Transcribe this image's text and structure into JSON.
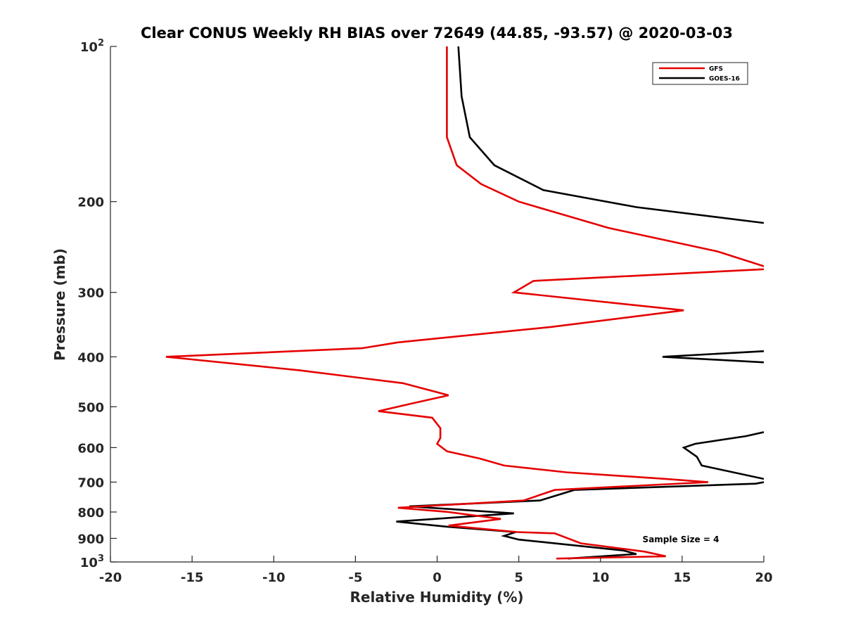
{
  "chart_data": {
    "type": "line",
    "title": "Clear CONUS Weekly RH BIAS over 72649 (44.85, -93.57) @ 2020-03-03",
    "xlabel": "Relative Humidity (%)",
    "ylabel": "Pressure (mb)",
    "xlim": [
      -20,
      20
    ],
    "ylim": [
      100,
      1000
    ],
    "y_scale": "log",
    "y_reversed": true,
    "grid": false,
    "legend_position": "top-right",
    "x_ticks": [
      -20,
      -15,
      -10,
      -5,
      0,
      5,
      10,
      15,
      20
    ],
    "x_tick_labels": [
      "-20",
      "-15",
      "-10",
      "-5",
      "0",
      "5",
      "10",
      "15",
      "20"
    ],
    "y_ticks": [
      100,
      200,
      300,
      400,
      500,
      600,
      700,
      800,
      900,
      1000
    ],
    "y_tick_labels": [
      {
        "base": "10",
        "exp": "2"
      },
      {
        "base": "200"
      },
      {
        "base": "300"
      },
      {
        "base": "400"
      },
      {
        "base": "500"
      },
      {
        "base": "600"
      },
      {
        "base": "700"
      },
      {
        "base": "800"
      },
      {
        "base": "900"
      },
      {
        "base": "10",
        "exp": "3"
      }
    ],
    "annotation": "Sample Size = 4",
    "series": [
      {
        "name": "GFS",
        "color": "#e50000",
        "points": [
          [
            0.6,
            100
          ],
          [
            0.6,
            125
          ],
          [
            0.6,
            150
          ],
          [
            1.2,
            170
          ],
          [
            2.7,
            185
          ],
          [
            5.0,
            200
          ],
          [
            10.5,
            225
          ],
          [
            17.2,
            250
          ],
          [
            20.5,
            270
          ],
          [
            5.9,
            285
          ],
          [
            4.7,
            300
          ],
          [
            15.1,
            325
          ],
          [
            7.0,
            350
          ],
          [
            -2.4,
            375
          ],
          [
            -4.6,
            385
          ],
          [
            -16.6,
            400
          ],
          [
            -8.4,
            425
          ],
          [
            -2.1,
            450
          ],
          [
            0.7,
            475
          ],
          [
            -1.2,
            490
          ],
          [
            -3.6,
            510
          ],
          [
            -0.3,
            525
          ],
          [
            0.2,
            550
          ],
          [
            0.2,
            575
          ],
          [
            0.0,
            590
          ],
          [
            0.6,
            610
          ],
          [
            2.6,
            630
          ],
          [
            4.1,
            650
          ],
          [
            7.9,
            670
          ],
          [
            14.0,
            690
          ],
          [
            16.6,
            700
          ],
          [
            7.2,
            725
          ],
          [
            5.3,
            760
          ],
          [
            -2.4,
            785
          ],
          [
            0.7,
            800
          ],
          [
            3.9,
            825
          ],
          [
            0.7,
            850
          ],
          [
            4.9,
            875
          ],
          [
            7.2,
            880
          ],
          [
            8.8,
            920
          ],
          [
            12.7,
            955
          ],
          [
            14.0,
            975
          ],
          [
            7.3,
            985
          ]
        ]
      },
      {
        "name": "GOES-16",
        "color": "#000000",
        "segments": [
          [
            [
              1.3,
              100
            ],
            [
              1.5,
              125
            ],
            [
              2.0,
              150
            ],
            [
              3.5,
              170
            ],
            [
              6.5,
              190
            ],
            [
              12.2,
              205
            ],
            [
              20.0,
              220
            ]
          ],
          [
            [
              20.0,
              390
            ],
            [
              13.8,
              400
            ],
            [
              20.0,
              410
            ]
          ],
          [
            [
              20.0,
              560
            ],
            [
              18.9,
              570
            ],
            [
              15.8,
              590
            ],
            [
              15.1,
              600
            ],
            [
              15.9,
              625
            ],
            [
              16.2,
              650
            ],
            [
              20.0,
              690
            ]
          ],
          [
            [
              20.0,
              700
            ],
            [
              19.5,
              705
            ],
            [
              8.4,
              725
            ],
            [
              6.3,
              760
            ],
            [
              -1.7,
              780
            ],
            [
              4.7,
              805
            ],
            [
              -2.5,
              835
            ],
            [
              0.7,
              855
            ],
            [
              4.8,
              875
            ],
            [
              4.1,
              890
            ],
            [
              5.0,
              905
            ],
            [
              11.4,
              950
            ],
            [
              12.2,
              965
            ],
            [
              8.0,
              985
            ]
          ]
        ]
      }
    ]
  }
}
